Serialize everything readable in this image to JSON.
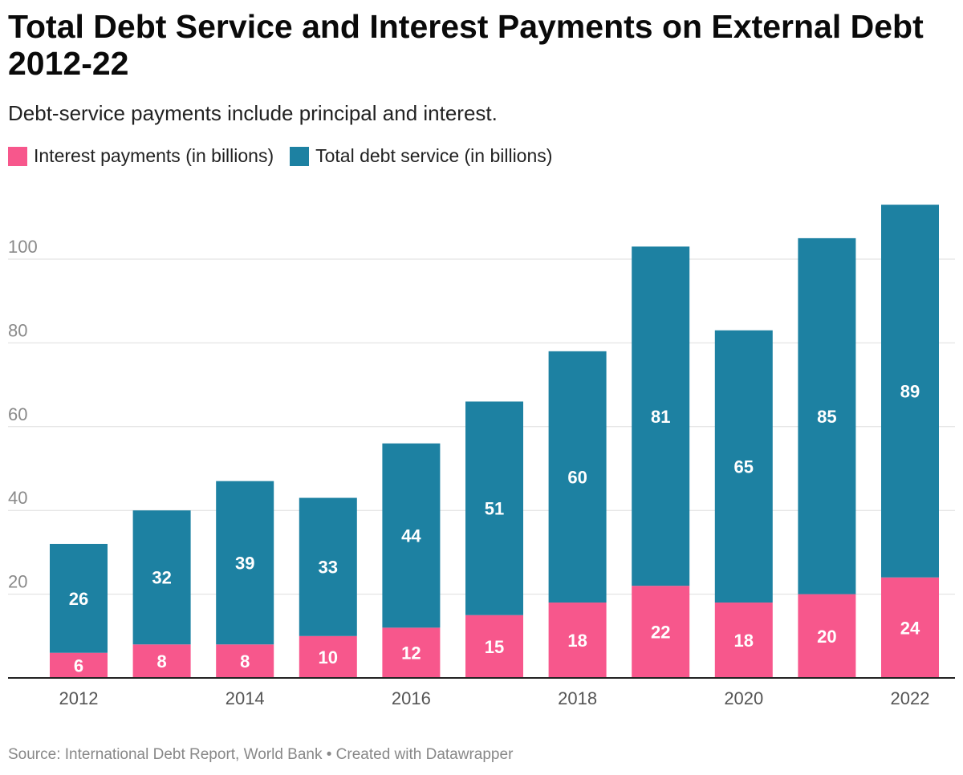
{
  "title": "Total Debt Service and Interest Payments on External Debt 2012-22",
  "subtitle": "Debt-service payments include principal and interest.",
  "source": "Source: International Debt Report, World Bank • Created with Datawrapper",
  "chart_data": {
    "type": "bar",
    "stacked": true,
    "categories": [
      "2012",
      "2013",
      "2014",
      "2015",
      "2016",
      "2017",
      "2018",
      "2019",
      "2020",
      "2021",
      "2022"
    ],
    "x_tick_labels": [
      "2012",
      "2014",
      "2016",
      "2018",
      "2020",
      "2022"
    ],
    "series": [
      {
        "name": "Interest payments (in billions)",
        "color": "#f7578c",
        "values": [
          6,
          8,
          8,
          10,
          12,
          15,
          18,
          22,
          18,
          20,
          24
        ]
      },
      {
        "name": "Total debt service (in billions)",
        "color": "#1d81a2",
        "values": [
          26,
          32,
          39,
          33,
          44,
          51,
          60,
          81,
          65,
          85,
          89
        ]
      }
    ],
    "ylim": [
      0,
      114
    ],
    "y_ticks": [
      20,
      40,
      60,
      80,
      100
    ],
    "grid": true,
    "legend_position": "top-left"
  }
}
